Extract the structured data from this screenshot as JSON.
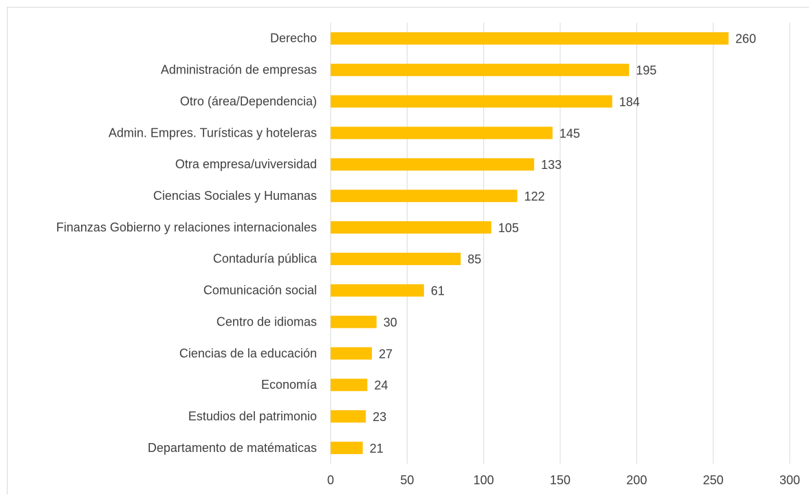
{
  "chart_data": {
    "type": "bar",
    "orientation": "horizontal",
    "categories": [
      "Derecho",
      "Administración de empresas",
      "Otro (área/Dependencia)",
      "Admin. Empres. Turísticas y hoteleras",
      "Otra empresa/uviversidad",
      "Ciencias Sociales y Humanas",
      "Finanzas Gobierno y relaciones internacionales",
      "Contaduría pública",
      "Comunicación social",
      "Centro de idiomas",
      "Ciencias de la educación",
      "Economía",
      "Estudios del patrimonio",
      "Departamento de matématicas"
    ],
    "values": [
      260,
      195,
      184,
      145,
      133,
      122,
      105,
      85,
      61,
      30,
      27,
      24,
      23,
      21
    ],
    "color": "#ffc000",
    "xlim": [
      0,
      300
    ],
    "xticks": [
      0,
      50,
      100,
      150,
      200,
      250,
      300
    ],
    "grid": true
  }
}
